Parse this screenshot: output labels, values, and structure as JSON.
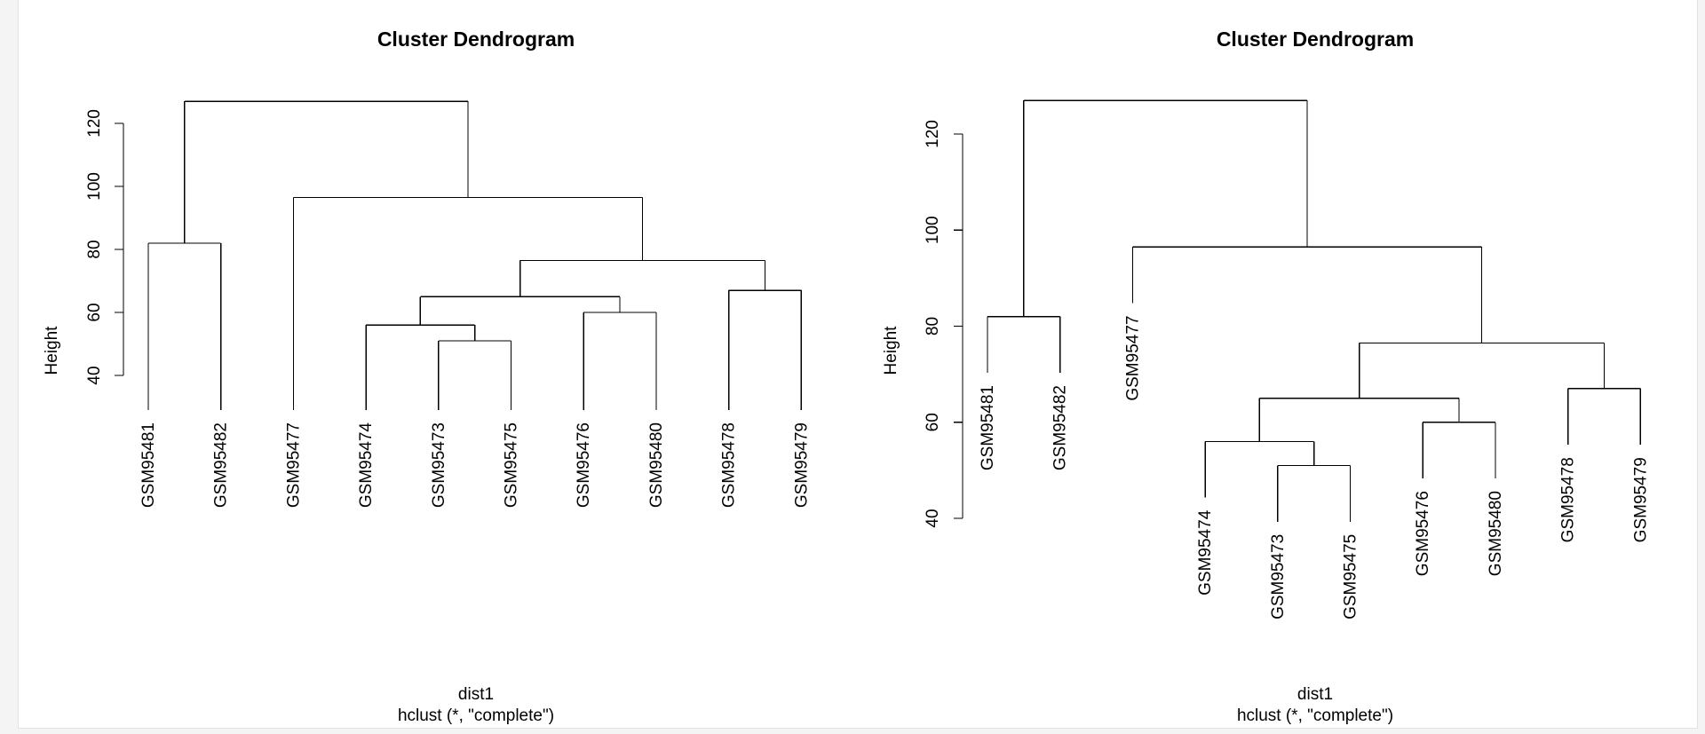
{
  "chart_data": [
    {
      "type": "dendrogram",
      "title": "Cluster Dendrogram",
      "xlabel": "dist1",
      "sub": "hclust (*, \"complete\")",
      "ylabel": "Height",
      "ylim": [
        40,
        127
      ],
      "yticks": [
        40,
        60,
        80,
        100,
        120
      ],
      "hang": false,
      "leaves": [
        "GSM95481",
        "GSM95482",
        "GSM95477",
        "GSM95474",
        "GSM95473",
        "GSM95475",
        "GSM95476",
        "GSM95480",
        "GSM95478",
        "GSM95479"
      ],
      "merges": [
        {
          "left": "GSM95473",
          "right": "GSM95475",
          "height": 51
        },
        {
          "left": "GSM95474",
          "right": 0,
          "height": 56
        },
        {
          "left": "GSM95476",
          "right": "GSM95480",
          "height": 60
        },
        {
          "left": 1,
          "right": 2,
          "height": 65
        },
        {
          "left": "GSM95478",
          "right": "GSM95479",
          "height": 67
        },
        {
          "left": 3,
          "right": 4,
          "height": 76.5
        },
        {
          "left": "GSM95481",
          "right": "GSM95482",
          "height": 82
        },
        {
          "left": "GSM95477",
          "right": 5,
          "height": 96.5
        },
        {
          "left": 6,
          "right": 7,
          "height": 127
        }
      ]
    },
    {
      "type": "dendrogram",
      "title": "Cluster Dendrogram",
      "xlabel": "dist1",
      "sub": "hclust (*, \"complete\")",
      "ylabel": "Height",
      "ylim": [
        40,
        127
      ],
      "yticks": [
        40,
        60,
        80,
        100,
        120
      ],
      "hang": true,
      "leaves": [
        "GSM95481",
        "GSM95482",
        "GSM95477",
        "GSM95474",
        "GSM95473",
        "GSM95475",
        "GSM95476",
        "GSM95480",
        "GSM95478",
        "GSM95479"
      ],
      "merges": [
        {
          "left": "GSM95473",
          "right": "GSM95475",
          "height": 51
        },
        {
          "left": "GSM95474",
          "right": 0,
          "height": 56
        },
        {
          "left": "GSM95476",
          "right": "GSM95480",
          "height": 60
        },
        {
          "left": 1,
          "right": 2,
          "height": 65
        },
        {
          "left": "GSM95478",
          "right": "GSM95479",
          "height": 67
        },
        {
          "left": 3,
          "right": 4,
          "height": 76.5
        },
        {
          "left": "GSM95481",
          "right": "GSM95482",
          "height": 82
        },
        {
          "left": "GSM95477",
          "right": 5,
          "height": 96.5
        },
        {
          "left": 6,
          "right": 7,
          "height": 127
        }
      ]
    }
  ]
}
